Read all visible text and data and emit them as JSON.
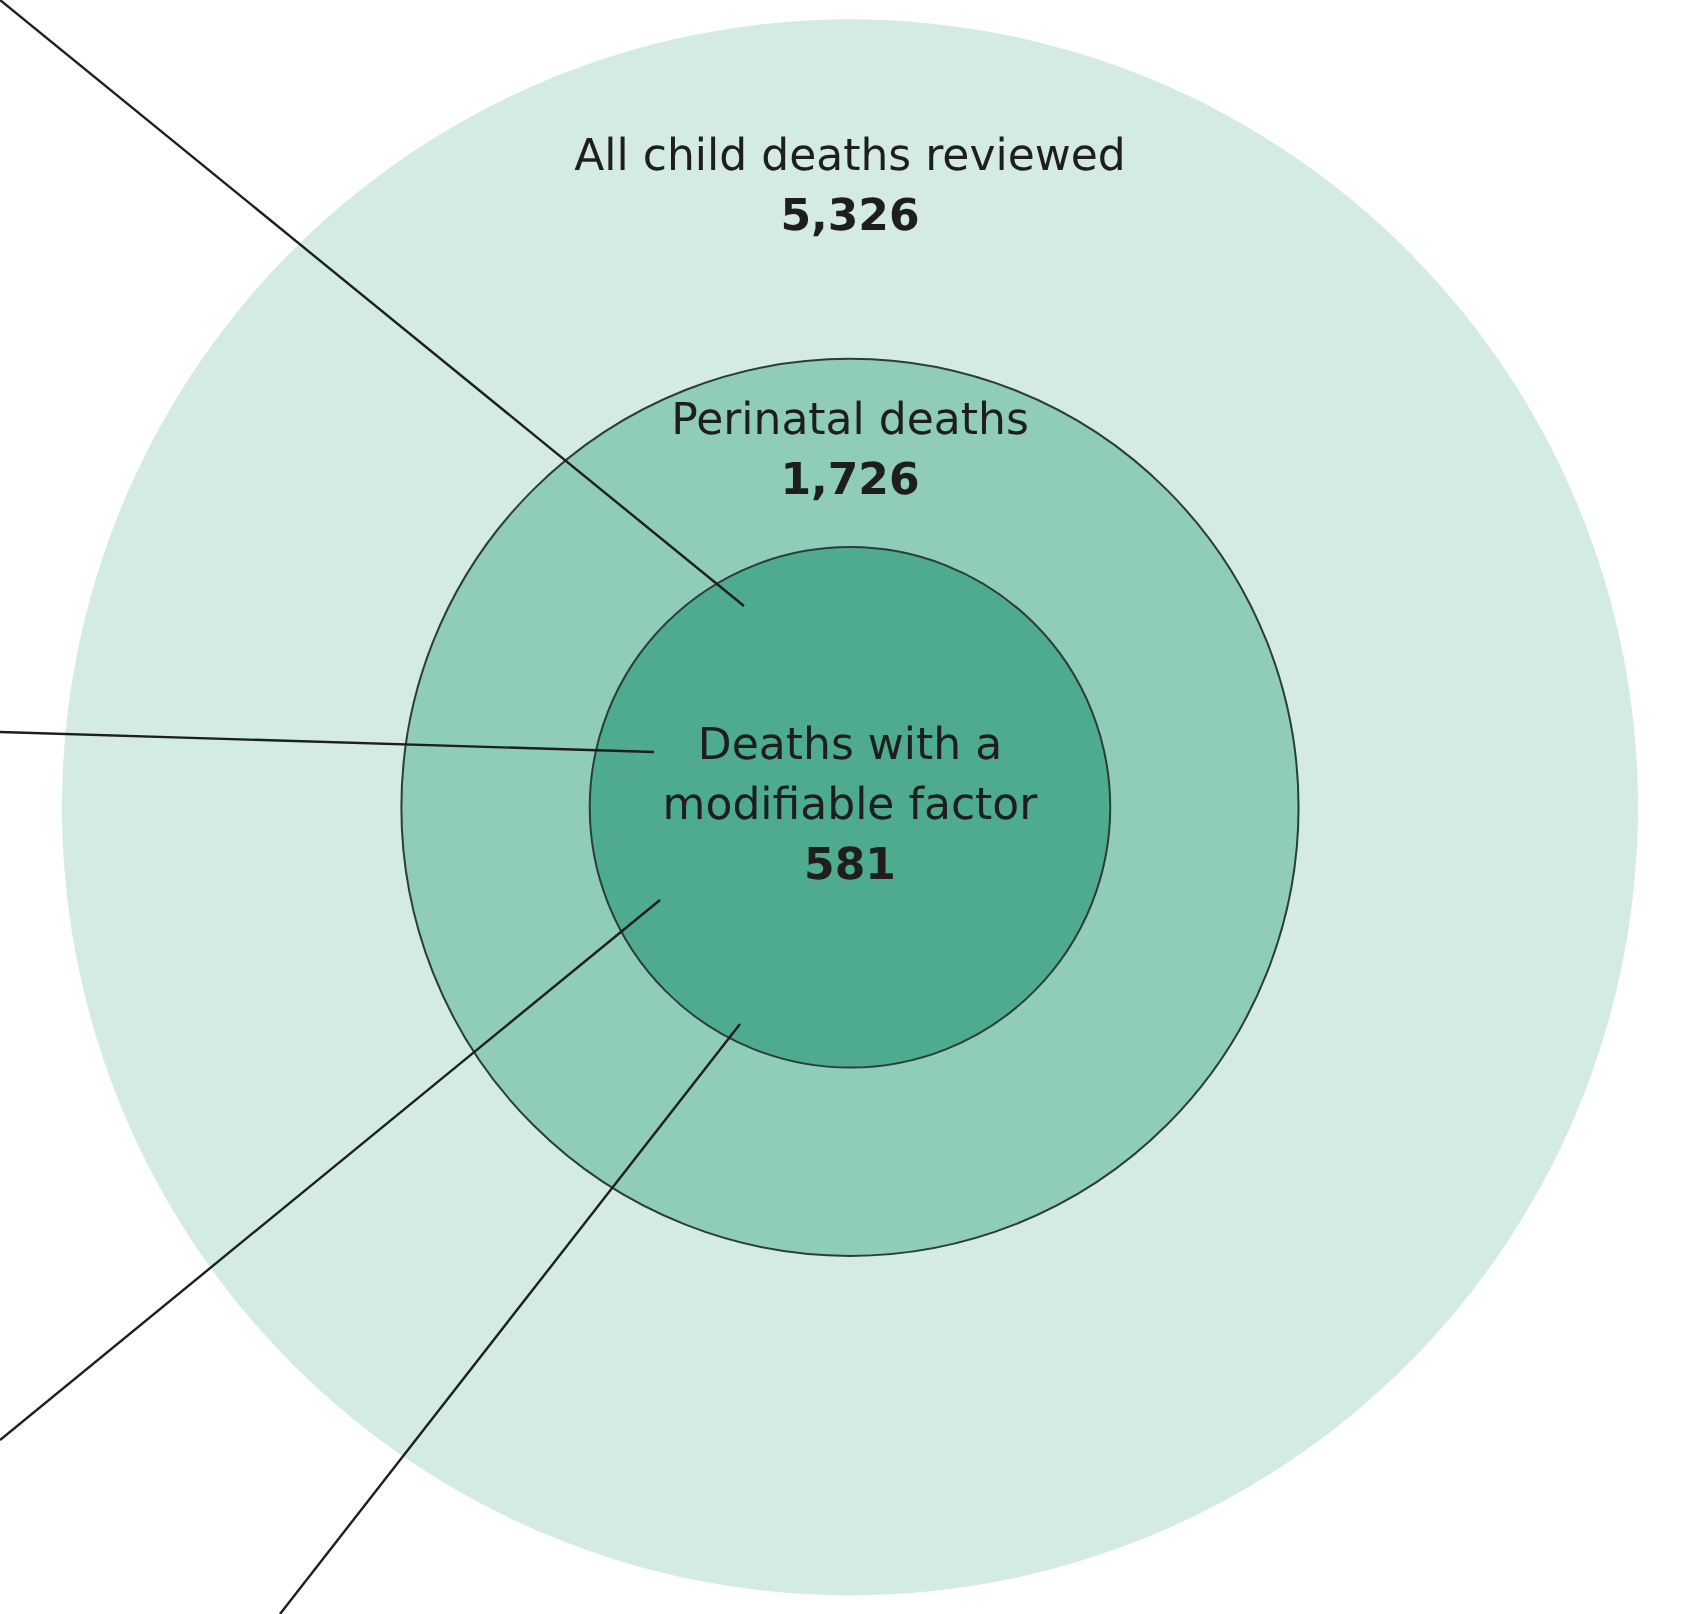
{
  "chart_data": {
    "type": "other",
    "categories": [
      "All child deaths reviewed",
      "Perinatal deaths",
      "Deaths with a modifiable factor"
    ],
    "values": [
      5326,
      1726,
      581
    ],
    "value_labels": [
      "5,326",
      "1,726",
      "581"
    ],
    "colors": [
      "#d4ebe3",
      "#90ccba",
      "#4eab8f"
    ]
  }
}
